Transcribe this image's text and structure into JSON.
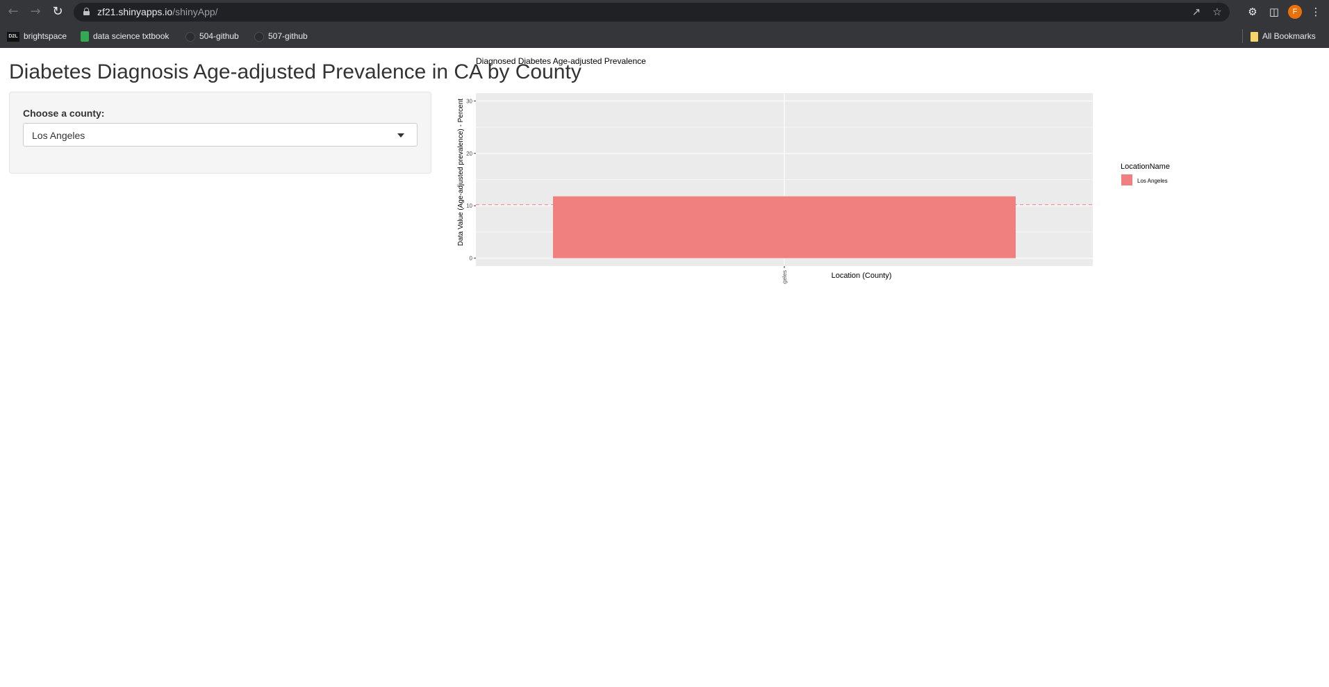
{
  "browser": {
    "url_host": "zf21.shinyapps.io",
    "url_path": "/shinyApp/",
    "avatar_letter": "F",
    "bookmarks": [
      {
        "label": "brightspace",
        "icon": "d2l-icon"
      },
      {
        "label": "data science txtbook",
        "icon": "book-icon"
      },
      {
        "label": "504-github",
        "icon": "github-icon"
      },
      {
        "label": "507-github",
        "icon": "github-icon"
      }
    ],
    "all_bookmarks": "All Bookmarks"
  },
  "app": {
    "title": "Diabetes Diagnosis Age-adjusted Prevalence in CA by County",
    "sidebar": {
      "label": "Choose a county:",
      "selected": "Los Angeles"
    }
  },
  "chart_data": {
    "type": "bar",
    "title": "Diagnosed Diabetes Age-adjusted Prevalence",
    "xlabel": "Location (County)",
    "ylabel": "Data Value (Age-adjusted prevalence) - Percent",
    "categories": [
      "Los Angeles"
    ],
    "values": [
      11.8
    ],
    "ylim": [
      -1.5,
      31.5
    ],
    "yticks": [
      0,
      10,
      20,
      30
    ],
    "reference_line": 10.2,
    "bar_color": "#f08080",
    "panel_color": "#ebebeb",
    "reference_color": "#f08080",
    "legend_title": "LocationName",
    "legend_items": [
      "Los Angeles"
    ],
    "legend_position": "right",
    "grid": true
  }
}
